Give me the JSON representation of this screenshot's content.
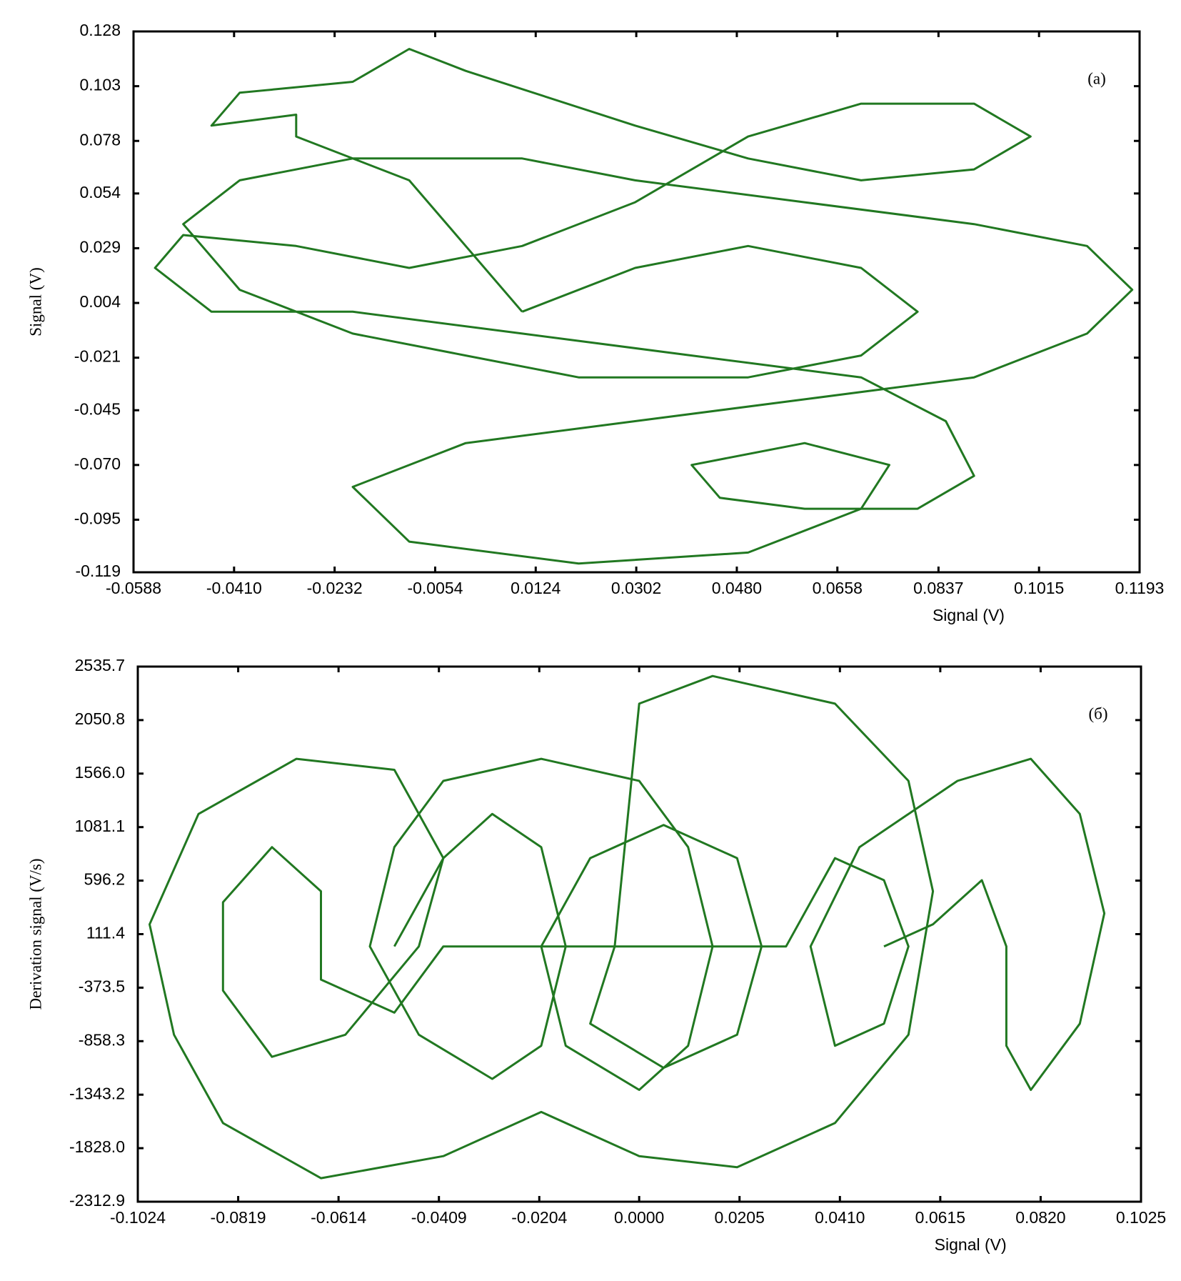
{
  "chart_data": [
    {
      "type": "line",
      "annotation": "(a)",
      "x_label": "Signal (V)",
      "y_label": "Signal (V)",
      "xlim": [
        -0.0588,
        0.1193
      ],
      "ylim": [
        -0.119,
        0.128
      ],
      "xticks": [
        -0.0588,
        {
          "value": -0.041,
          "label": "-0.0410"
        },
        -0.0232,
        -0.0054,
        0.0124,
        0.0302,
        {
          "value": 0.048,
          "label": "0.0480"
        },
        0.0658,
        0.0837,
        0.1015,
        0.1193
      ],
      "yticks": [
        0.128,
        0.103,
        0.078,
        0.054,
        0.029,
        0.004,
        -0.021,
        -0.045,
        {
          "value": -0.07,
          "label": "-0.070"
        },
        -0.095,
        -0.119
      ],
      "series": [
        {
          "color": "#217821",
          "x": [
            0.01,
            0.03,
            0.05,
            0.07,
            0.08,
            0.07,
            0.05,
            0.02,
            0.0,
            -0.02,
            -0.04,
            -0.05,
            -0.04,
            -0.02,
            0.01,
            0.03,
            0.06,
            0.09,
            0.11,
            0.118,
            0.11,
            0.09,
            0.06,
            0.03,
            0.0,
            -0.02,
            -0.01,
            0.02,
            0.05,
            0.07,
            0.075,
            0.06,
            0.04,
            0.045,
            0.06,
            0.08,
            0.09,
            0.085,
            0.07,
            0.04,
            0.01,
            -0.02,
            -0.045,
            -0.055,
            -0.05,
            -0.03,
            -0.01,
            0.01,
            0.03,
            0.05,
            0.07,
            0.09,
            0.1,
            0.09,
            0.07,
            0.05,
            0.03,
            0.0,
            -0.01,
            -0.02,
            -0.04,
            -0.045,
            -0.03,
            -0.03,
            -0.01,
            0.0,
            0.01
          ],
          "y": [
            0.0,
            0.02,
            0.03,
            0.02,
            0.0,
            -0.02,
            -0.03,
            -0.03,
            -0.02,
            -0.01,
            0.01,
            0.04,
            0.06,
            0.07,
            0.07,
            0.06,
            0.05,
            0.04,
            0.03,
            0.01,
            -0.01,
            -0.03,
            -0.04,
            -0.05,
            -0.06,
            -0.08,
            -0.105,
            -0.115,
            -0.11,
            -0.09,
            -0.07,
            -0.06,
            -0.07,
            -0.085,
            -0.09,
            -0.09,
            -0.075,
            -0.05,
            -0.03,
            -0.02,
            -0.01,
            0.0,
            0.0,
            0.02,
            0.035,
            0.03,
            0.02,
            0.03,
            0.05,
            0.08,
            0.095,
            0.095,
            0.08,
            0.065,
            0.06,
            0.07,
            0.085,
            0.11,
            0.12,
            0.105,
            0.1,
            0.085,
            0.09,
            0.08,
            0.06,
            0.03,
            0.0
          ]
        }
      ]
    },
    {
      "type": "line",
      "annotation": "(б)",
      "x_label": "Signal (V)",
      "y_label": "Derivation signal (V/s)",
      "xlim": [
        -0.1024,
        0.1025
      ],
      "ylim": [
        -2312.9,
        2535.7
      ],
      "xticks": [
        -0.1024,
        -0.0819,
        -0.0614,
        -0.0409,
        -0.0204,
        {
          "value": 0,
          "label": "0.0000"
        },
        0.0205,
        {
          "value": 0.041,
          "label": "0.0410"
        },
        0.0615,
        {
          "value": 0.082,
          "label": "0.0820"
        },
        0.1025
      ],
      "yticks": [
        2535.7,
        2050.8,
        {
          "value": 1566,
          "label": "1566.0"
        },
        1081.1,
        596.2,
        111.4,
        -373.5,
        -858.3,
        -1343.2,
        {
          "value": -1828,
          "label": "-1828.0"
        },
        -2312.9
      ],
      "series": [
        {
          "color": "#217821",
          "x": [
            -0.05,
            -0.04,
            -0.03,
            -0.02,
            -0.015,
            -0.02,
            -0.03,
            -0.045,
            -0.055,
            -0.05,
            -0.04,
            -0.02,
            0.0,
            0.01,
            0.015,
            0.01,
            0.0,
            -0.015,
            -0.02,
            -0.01,
            0.005,
            0.02,
            0.025,
            0.02,
            0.005,
            -0.01,
            -0.005,
            0.0,
            0.015,
            0.04,
            0.055,
            0.06,
            0.055,
            0.04,
            0.02,
            0.0,
            -0.02,
            -0.04,
            -0.065,
            -0.085,
            -0.095,
            -0.1,
            -0.09,
            -0.07,
            -0.05,
            -0.04,
            -0.045,
            -0.06,
            -0.075,
            -0.085,
            -0.085,
            -0.075,
            -0.065,
            -0.065,
            -0.05,
            -0.04,
            0.03,
            0.04,
            0.05,
            0.055,
            0.05,
            0.04,
            0.035,
            0.045,
            0.065,
            0.08,
            0.09,
            0.095,
            0.09,
            0.08,
            0.075,
            0.075,
            0.07,
            0.06,
            0.05
          ],
          "y": [
            0,
            800,
            1200,
            900,
            0,
            -900,
            -1200,
            -800,
            0,
            900,
            1500,
            1700,
            1500,
            900,
            0,
            -900,
            -1300,
            -900,
            0,
            800,
            1100,
            800,
            0,
            -800,
            -1100,
            -700,
            0,
            2200,
            2450,
            2200,
            1500,
            500,
            -800,
            -1600,
            -2000,
            -1900,
            -1500,
            -1900,
            -2100,
            -1600,
            -800,
            200,
            1200,
            1700,
            1600,
            800,
            0,
            -800,
            -1000,
            -400,
            400,
            900,
            500,
            -300,
            -600,
            0,
            0,
            800,
            600,
            0,
            -700,
            -900,
            0,
            900,
            1500,
            1700,
            1200,
            300,
            -700,
            -1300,
            -900,
            0,
            600,
            200,
            0
          ]
        }
      ]
    }
  ]
}
